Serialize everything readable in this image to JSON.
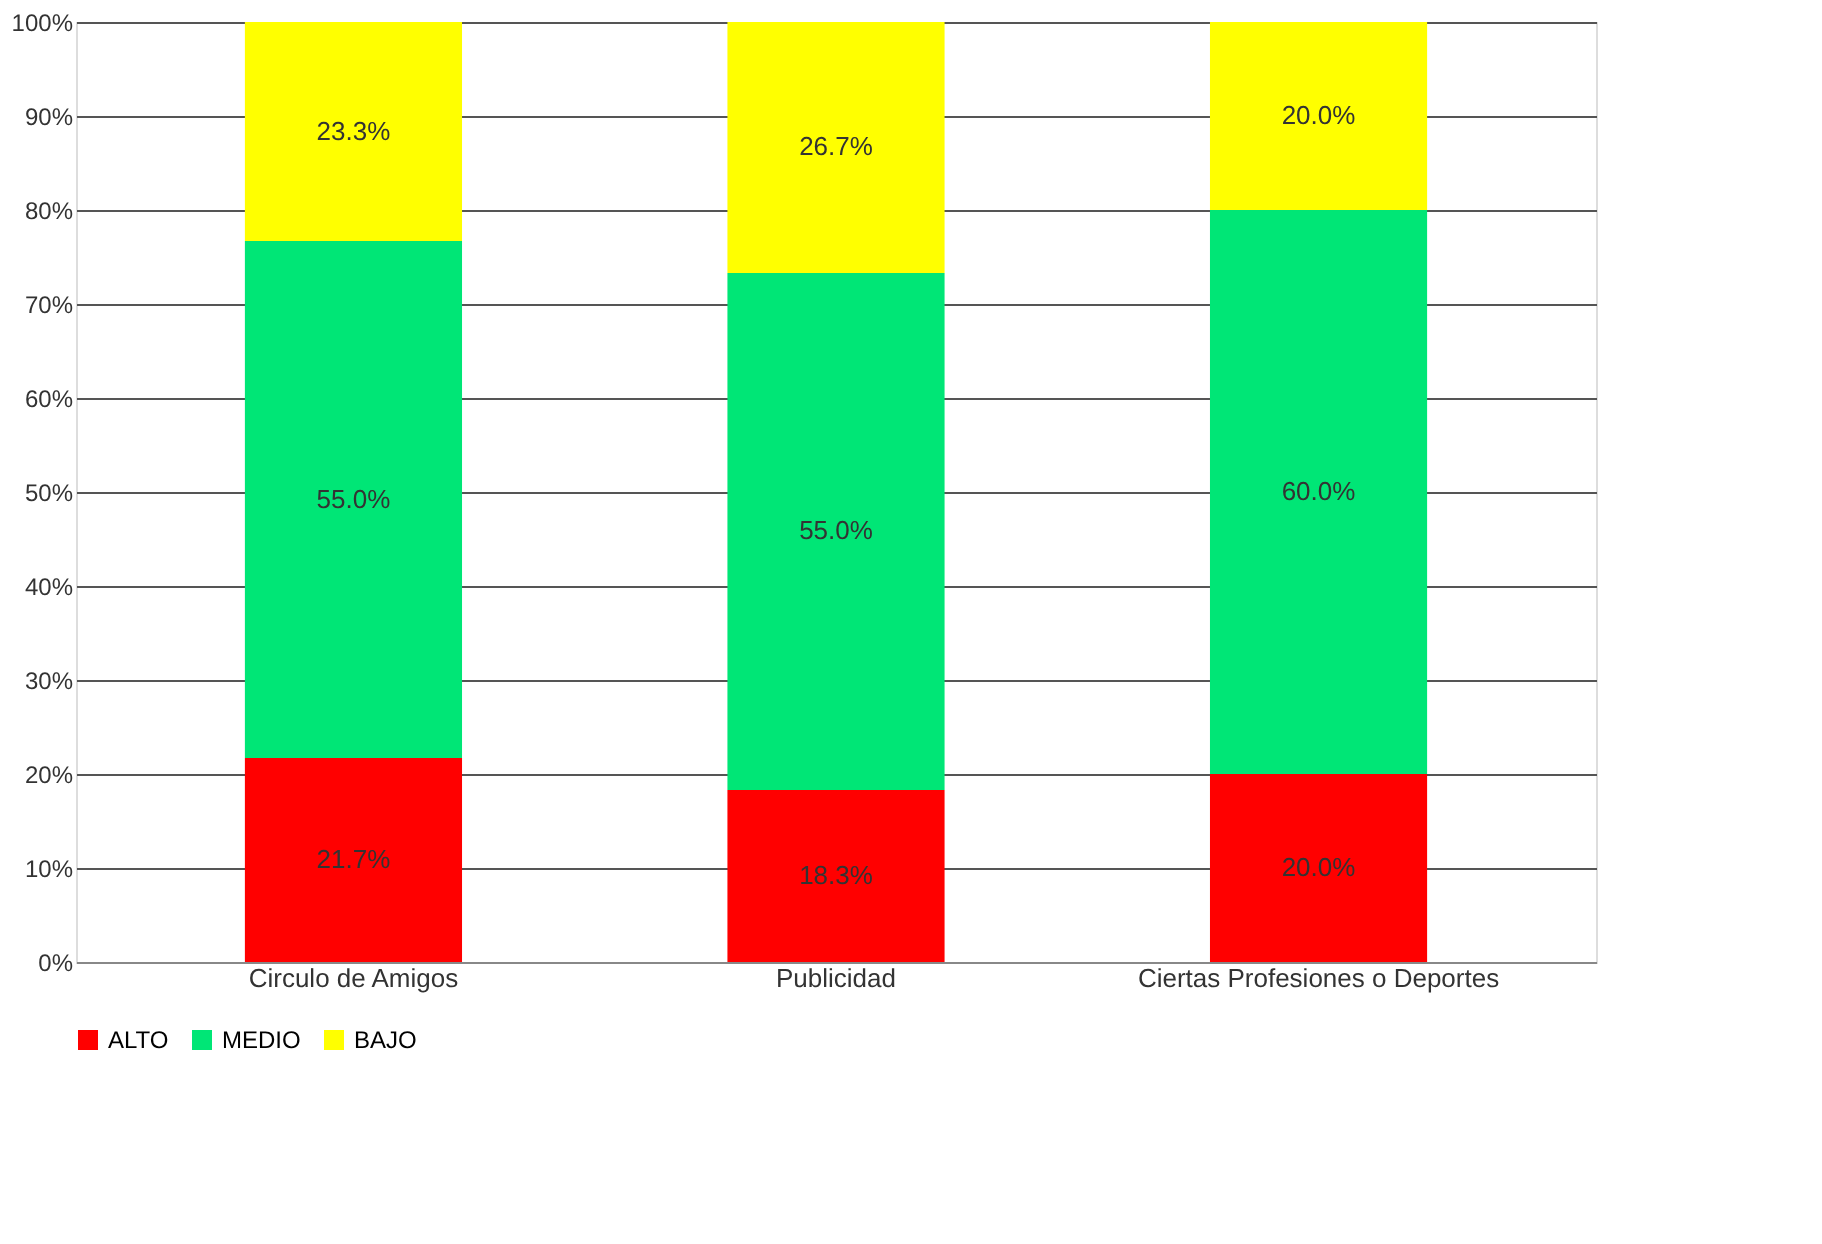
{
  "chart_data": {
    "type": "bar",
    "stacked": true,
    "categories": [
      "Circulo de Amigos",
      "Publicidad",
      "Ciertas Profesiones o Deportes"
    ],
    "series": [
      {
        "name": "ALTO",
        "color": "#ff0000",
        "values": [
          21.7,
          18.3,
          20.0
        ],
        "value_labels": [
          "21.7%",
          "18.3%",
          "20.0%"
        ]
      },
      {
        "name": "MEDIO",
        "color": "#00e676",
        "values": [
          55.0,
          55.0,
          60.0
        ],
        "value_labels": [
          "55.0%",
          "55.0%",
          "60.0%"
        ]
      },
      {
        "name": "BAJO",
        "color": "#ffff00",
        "values": [
          23.3,
          26.7,
          20.0
        ],
        "value_labels": [
          "23.3%",
          "26.7%",
          "20.0%"
        ]
      }
    ],
    "ylim": [
      0,
      100
    ],
    "yticks": [
      {
        "value": 0,
        "label": "0%"
      },
      {
        "value": 10,
        "label": "10%"
      },
      {
        "value": 20,
        "label": "20%"
      },
      {
        "value": 30,
        "label": "30%"
      },
      {
        "value": 40,
        "label": "40%"
      },
      {
        "value": 50,
        "label": "50%"
      },
      {
        "value": 60,
        "label": "60%"
      },
      {
        "value": 70,
        "label": "70%"
      },
      {
        "value": 80,
        "label": "80%"
      },
      {
        "value": 90,
        "label": "90%"
      },
      {
        "value": 100,
        "label": "100%"
      }
    ],
    "grid": "y",
    "legend": "bottom"
  }
}
